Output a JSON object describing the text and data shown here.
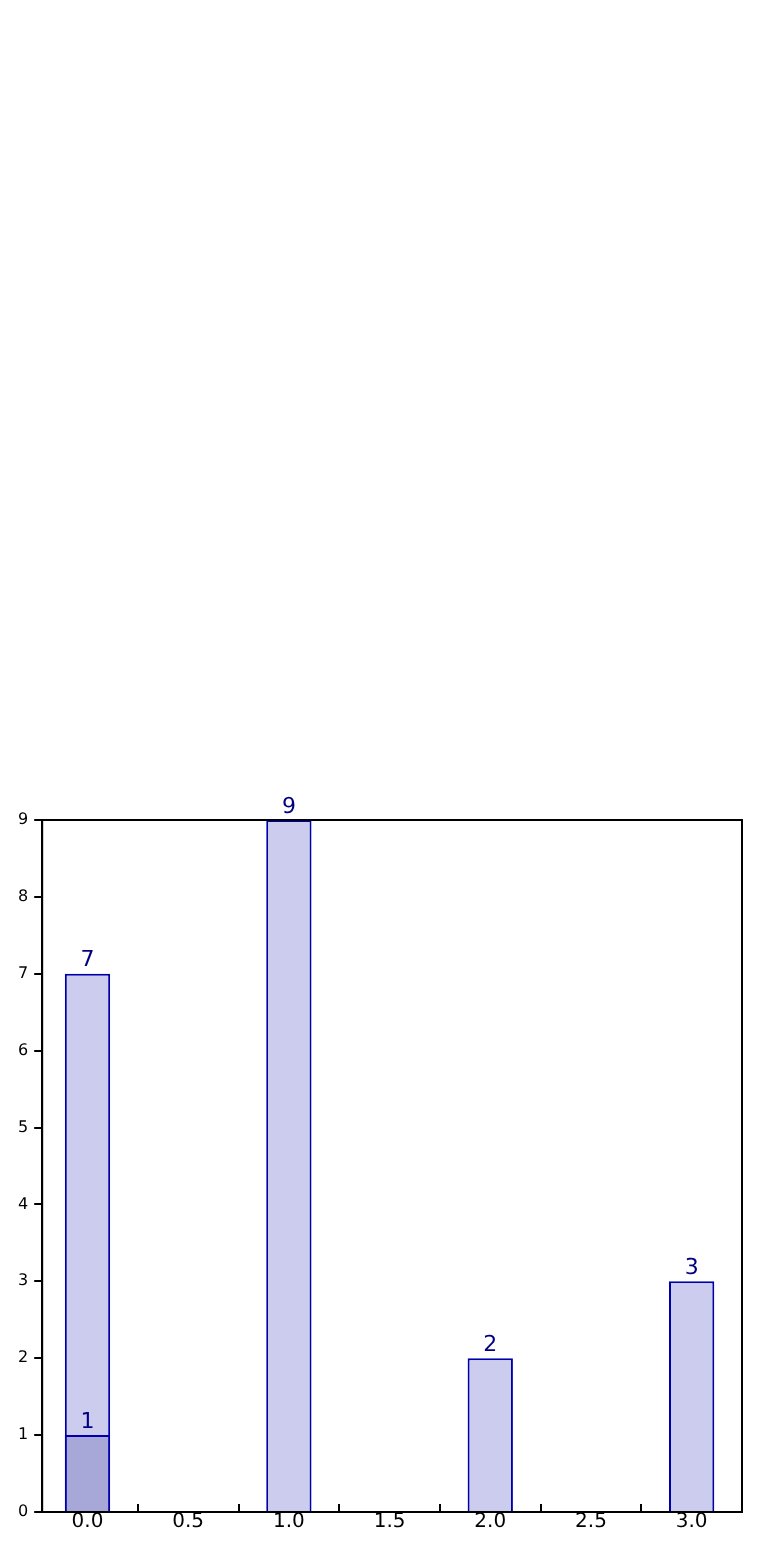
{
  "chart_data": {
    "type": "bar",
    "x": [
      0,
      1,
      2,
      3
    ],
    "series": [
      {
        "color": "#ccccee",
        "values": [
          7,
          9,
          2,
          3
        ]
      },
      {
        "color": "#a8a8d8",
        "values": [
          1,
          null,
          null,
          null
        ]
      }
    ],
    "xlim": [
      -0.225,
      3.25
    ],
    "xticks": [
      {
        "value": 0,
        "label": "0.0"
      },
      {
        "value": 0.5,
        "label": "0.5"
      },
      {
        "value": 1,
        "label": "1.0"
      },
      {
        "value": 1.5,
        "label": "1.5"
      },
      {
        "value": 2,
        "label": "2.0"
      },
      {
        "value": 2.5,
        "label": "2.5"
      },
      {
        "value": 3,
        "label": "3.0"
      }
    ],
    "ylim": [
      0,
      9
    ],
    "yticks": [
      0,
      1,
      2,
      3,
      4,
      5,
      6,
      7,
      8,
      9
    ],
    "data_labels": true,
    "grid": false,
    "legend": false
  }
}
